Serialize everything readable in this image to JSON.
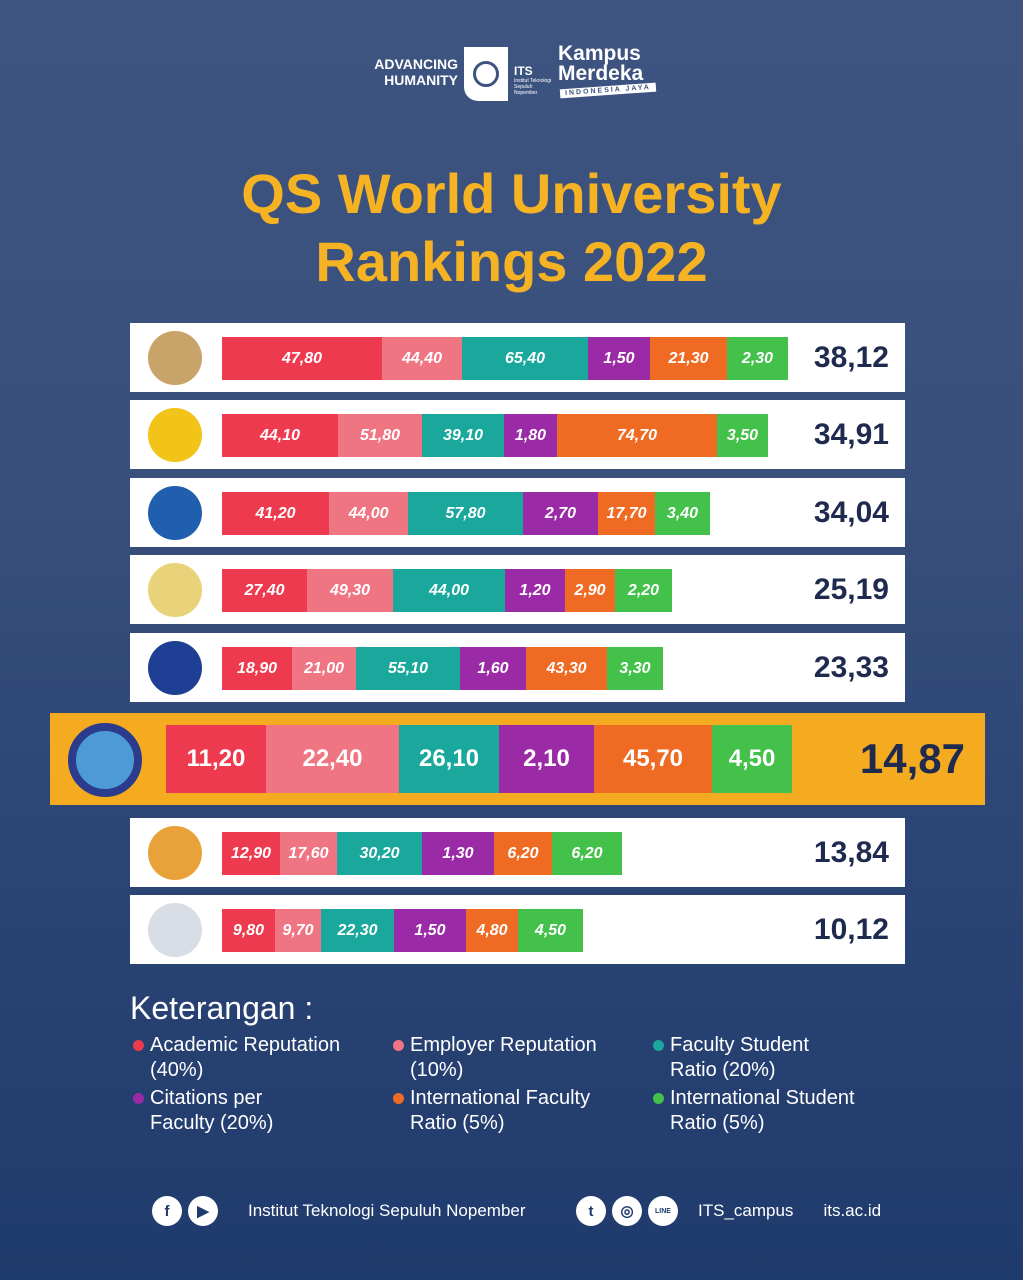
{
  "header": {
    "tagline": [
      "ADVANCING",
      "HUMANITY"
    ],
    "its_name": "ITS",
    "its_sub": "Institut Teknologi Sepuluh Nopember",
    "kampus": [
      "Kampus",
      "Merdeka"
    ],
    "kampus_tag": "INDONESIA JAYA"
  },
  "title": [
    "QS World University",
    "Rankings 2022"
  ],
  "colors": {
    "academic": "#ee3a4f",
    "employer": "#f07582",
    "faculty_student": "#1aa89c",
    "citations": "#9b2aa6",
    "intl_faculty": "#ef6a22",
    "intl_student": "#43c14a",
    "highlight": "#f4ab1f",
    "title": "#f5b324",
    "total": "#1f2a4f"
  },
  "chart_data": {
    "type": "bar",
    "stacked": true,
    "orientation": "horizontal",
    "series_names": [
      "Academic Reputation (40%)",
      "Employer Reputation (10%)",
      "Faculty Student Ratio (20%)",
      "Citations per Faculty (20%)",
      "International Faculty Ratio (5%)",
      "International Student Ratio (5%)"
    ],
    "rows": [
      {
        "logo": "ugm-logo-icon",
        "values": [
          "47,80",
          "44,40",
          "65,40",
          "1,50",
          "21,30",
          "2,30"
        ],
        "total": "38,12"
      },
      {
        "logo": "ui-logo-icon",
        "values": [
          "44,10",
          "51,80",
          "39,10",
          "1,80",
          "74,70",
          "3,50"
        ],
        "total": "34,91"
      },
      {
        "logo": "itb-logo-icon",
        "values": [
          "41,20",
          "44,00",
          "57,80",
          "2,70",
          "17,70",
          "3,40"
        ],
        "total": "34,04"
      },
      {
        "logo": "unair-logo-icon",
        "values": [
          "27,40",
          "49,30",
          "44,00",
          "1,20",
          "2,90",
          "2,20"
        ],
        "total": "25,19"
      },
      {
        "logo": "ipb-logo-icon",
        "values": [
          "18,90",
          "21,00",
          "55,10",
          "1,60",
          "43,30",
          "3,30"
        ],
        "total": "23,33"
      },
      {
        "logo": "its-logo-icon",
        "values": [
          "11,20",
          "22,40",
          "26,10",
          "2,10",
          "45,70",
          "4,50"
        ],
        "total": "14,87",
        "highlight": true
      },
      {
        "logo": "unpad-logo-icon",
        "values": [
          "12,90",
          "17,60",
          "30,20",
          "1,30",
          "6,20",
          "6,20"
        ],
        "total": "13,84"
      },
      {
        "logo": "binus-logo-icon",
        "values": [
          "9,80",
          "9,70",
          "22,30",
          "1,50",
          "4,80",
          "4,50"
        ],
        "total": "10,12"
      }
    ]
  },
  "legend": {
    "title": "Keterangan :",
    "items": [
      {
        "lines": [
          "Academic Reputation",
          "(40%)"
        ],
        "color": "#ee3a4f"
      },
      {
        "lines": [
          "Employer Reputation",
          "(10%)"
        ],
        "color": "#f07582"
      },
      {
        "lines": [
          "Faculty Student",
          "Ratio (20%)"
        ],
        "color": "#1aa89c"
      },
      {
        "lines": [
          "Citations per",
          "Faculty (20%)"
        ],
        "color": "#9b2aa6"
      },
      {
        "lines": [
          "International Faculty",
          "Ratio (5%)"
        ],
        "color": "#ef6a22"
      },
      {
        "lines": [
          "International Student",
          "Ratio (5%)"
        ],
        "color": "#43c14a"
      }
    ]
  },
  "footer": {
    "name": "Institut Teknologi Sepuluh Nopember",
    "handle": "ITS_campus",
    "site": "its.ac.id",
    "icons": [
      "facebook-icon",
      "youtube-icon",
      "twitter-icon",
      "instagram-icon",
      "line-icon"
    ],
    "line_label": "LINE"
  }
}
